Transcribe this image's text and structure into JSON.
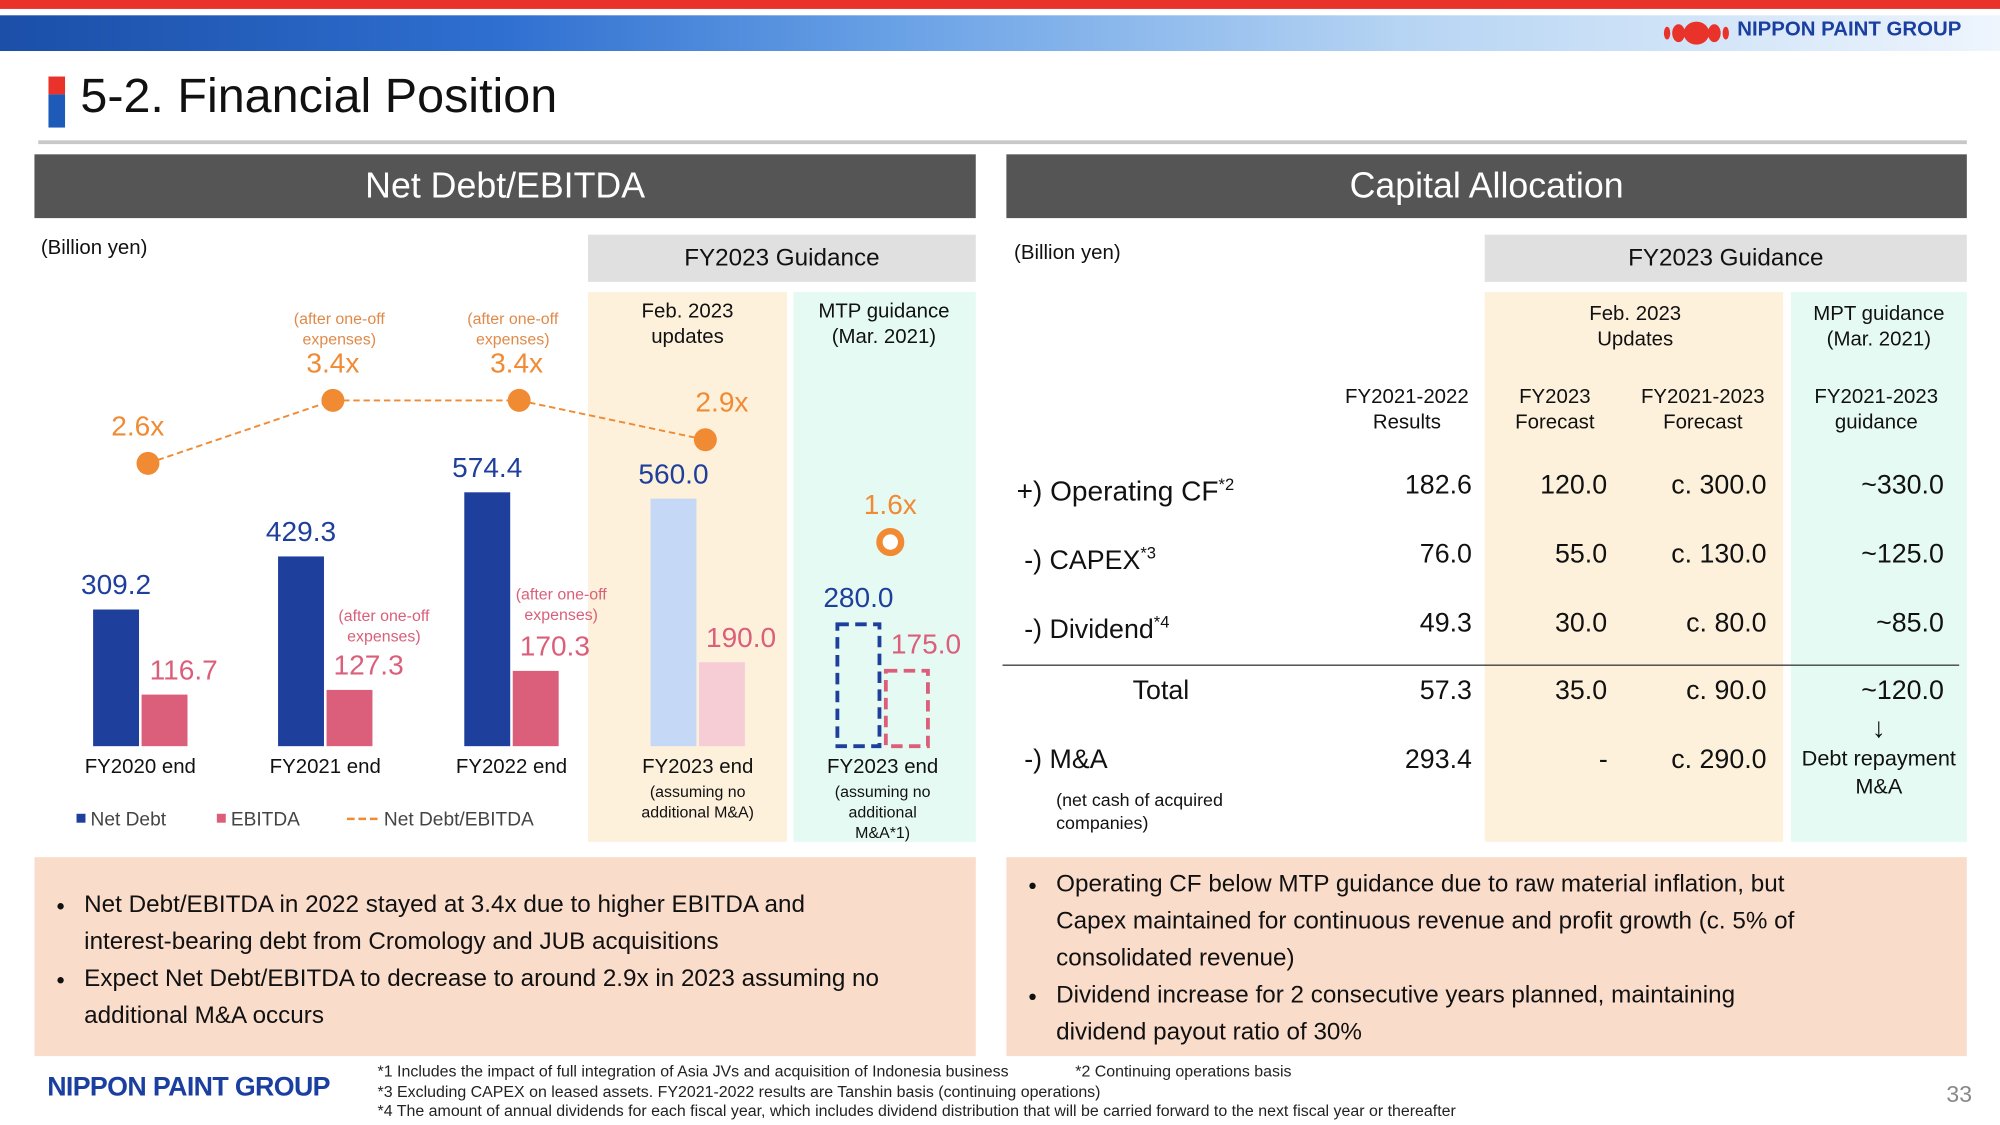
{
  "header": {
    "title": "5-2. Financial Position",
    "logo": "NIPPON PAINT GROUP"
  },
  "left_panel": {
    "heading": "Net Debt/EBITDA",
    "unit": "(Billion yen)",
    "guidance": "FY2023 Guidance",
    "columns": [
      "Feb. 2023 updates",
      "MTP guidance (Mar. 2021)"
    ]
  },
  "chart_data": {
    "type": "bar",
    "categories": [
      "FY2020 end",
      "FY2021 end",
      "FY2022 end",
      "FY2023 end",
      "FY2023 end"
    ],
    "category_notes": [
      null,
      null,
      null,
      "(assuming no additional M&A)",
      "(assuming no additional M&A*1)"
    ],
    "series": [
      {
        "name": "Net Debt",
        "color": "#1e3f9c",
        "colors": [
          "#1e3f9c",
          "#1e3f9c",
          "#1e3f9c",
          "#c5d8f6",
          "#1e3f9c"
        ],
        "values": [
          309.2,
          429.3,
          574.4,
          560.0,
          280.0
        ],
        "value_labels": [
          "309.2",
          "429.3",
          "574.4",
          "560.0",
          "280.0"
        ]
      },
      {
        "name": "EBITDA",
        "color": "#db5f7a",
        "colors": [
          "#db5f7a",
          "#db5f7a",
          "#db5f7a",
          "#f6ccd5",
          "#db5f7a"
        ],
        "values": [
          116.7,
          127.3,
          170.3,
          190.0,
          175.0
        ],
        "value_labels": [
          "116.7",
          "127.3",
          "170.3",
          "190.0",
          "175.0"
        ]
      },
      {
        "name": "Net Debt/EBITDA",
        "type": "line",
        "color": "#f08a33",
        "values": [
          2.6,
          3.4,
          3.4,
          2.9,
          1.6
        ],
        "value_labels": [
          "2.6x",
          "3.4x",
          "3.4x",
          "2.9x",
          "1.6x"
        ]
      }
    ],
    "annotations": [
      "(after one-off expenses)",
      "(after one-off expenses)",
      "(after one-off expenses)",
      "(after one-off expenses)"
    ]
  },
  "right_panel": {
    "heading": "Capital Allocation",
    "unit": "(Billion yen)",
    "guidance": "FY2023 Guidance",
    "groups": [
      "Feb. 2023 Updates",
      "MPT guidance (Mar. 2021)"
    ],
    "columns": [
      "FY2021-2022 Results",
      "FY2023 Forecast",
      "FY2021-2023 Forecast",
      "FY2021-2023 guidance"
    ],
    "rows": [
      {
        "label": "+) Operating CF",
        "sup": "*2",
        "cells": [
          "182.6",
          "120.0",
          "c. 300.0",
          "~330.0"
        ]
      },
      {
        "label": "-) CAPEX",
        "sup": "*3",
        "cells": [
          "76.0",
          "55.0",
          "c. 130.0",
          "~125.0"
        ]
      },
      {
        "label": "-) Dividend",
        "sup": "*4",
        "cells": [
          "49.3",
          "30.0",
          "c. 80.0",
          "~85.0"
        ]
      },
      {
        "label": "Total",
        "cells": [
          "57.3",
          "35.0",
          "c. 90.0",
          "~120.0"
        ]
      },
      {
        "label": "-) M&A",
        "note": "(net cash of acquired companies)",
        "cells": [
          "293.4",
          "-",
          "c. 290.0",
          "Debt repayment M&A"
        ]
      }
    ]
  },
  "left_bullets": [
    "Net Debt/EBITDA in 2022 stayed at 3.4x due to higher EBITDA and interest-bearing debt from Cromology and JUB acquisitions",
    "Expect Net Debt/EBITDA to decrease to around 2.9x in 2023 assuming no additional M&A occurs"
  ],
  "right_bullets": [
    "Operating CF below MTP guidance due to raw material inflation, but Capex maintained for continuous revenue and profit growth (c. 5% of consolidated revenue)",
    "Dividend increase for 2 consecutive years planned, maintaining dividend payout ratio of 30%"
  ],
  "footer": {
    "logo": "NIPPON PAINT GROUP",
    "footnotes": [
      "*1 Includes the impact of full integration of Asia JVs and acquisition of Indonesia business",
      "*2 Continuing operations basis",
      "*3 Excluding CAPEX on leased assets. FY2021-2022 results are Tanshin basis (continuing operations)",
      "*4 The amount of annual dividends for each fiscal year, which includes dividend distribution that will be carried forward to the next fiscal year or thereafter"
    ],
    "page_number": "33"
  }
}
